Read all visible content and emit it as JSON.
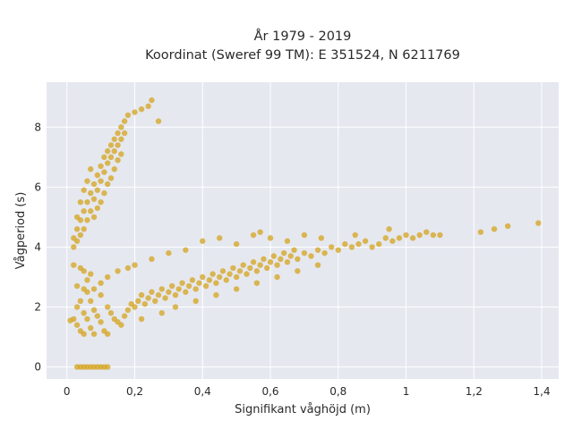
{
  "chart_data": {
    "type": "scatter",
    "title_lines": [
      "År 1979 - 2019",
      "Koordinat (Sweref 99 TM): E 351524, N 6211769"
    ],
    "xlabel": "Signifikant våghöjd (m)",
    "ylabel": "Vågperiod (s)",
    "xlim": [
      -0.06,
      1.45
    ],
    "ylim": [
      -0.4,
      9.5
    ],
    "x_ticks": [
      {
        "value": 0,
        "label": "0"
      },
      {
        "value": 0.2,
        "label": "0,2"
      },
      {
        "value": 0.4,
        "label": "0,4"
      },
      {
        "value": 0.6,
        "label": "0,6"
      },
      {
        "value": 0.8,
        "label": "0,8"
      },
      {
        "value": 1.0,
        "label": "1"
      },
      {
        "value": 1.2,
        "label": "1,2"
      },
      {
        "value": 1.4,
        "label": "1,4"
      }
    ],
    "y_ticks": [
      {
        "value": 0,
        "label": "0"
      },
      {
        "value": 2,
        "label": "2"
      },
      {
        "value": 4,
        "label": "4"
      },
      {
        "value": 6,
        "label": "6"
      },
      {
        "value": 8,
        "label": "8"
      }
    ],
    "grid": true,
    "colors": {
      "points": "#d4a41e",
      "plot_bg": "#e6e8f0",
      "grid": "#ffffff"
    },
    "series": [
      {
        "marker_opacity": 0.75,
        "points": [
          [
            0.01,
            1.55
          ],
          [
            0.02,
            1.6
          ],
          [
            0.03,
            1.4
          ],
          [
            0.04,
            1.2
          ],
          [
            0.05,
            1.1
          ],
          [
            0.03,
            2.0
          ],
          [
            0.04,
            2.2
          ],
          [
            0.05,
            1.8
          ],
          [
            0.06,
            1.6
          ],
          [
            0.07,
            1.3
          ],
          [
            0.08,
            1.1
          ],
          [
            0.06,
            2.5
          ],
          [
            0.07,
            2.2
          ],
          [
            0.08,
            1.9
          ],
          [
            0.09,
            1.7
          ],
          [
            0.1,
            1.5
          ],
          [
            0.11,
            1.2
          ],
          [
            0.12,
            1.1
          ],
          [
            0.05,
            2.6
          ],
          [
            0.06,
            2.9
          ],
          [
            0.07,
            3.1
          ],
          [
            0.04,
            3.3
          ],
          [
            0.05,
            3.2
          ],
          [
            0.03,
            2.7
          ],
          [
            0.02,
            3.4
          ],
          [
            0.1,
            2.4
          ],
          [
            0.12,
            2.0
          ],
          [
            0.13,
            1.8
          ],
          [
            0.14,
            1.6
          ],
          [
            0.15,
            1.5
          ],
          [
            0.16,
            1.4
          ],
          [
            0.17,
            1.7
          ],
          [
            0.18,
            1.9
          ],
          [
            0.19,
            2.1
          ],
          [
            0.2,
            2.0
          ],
          [
            0.21,
            2.2
          ],
          [
            0.22,
            2.4
          ],
          [
            0.23,
            2.1
          ],
          [
            0.24,
            2.3
          ],
          [
            0.25,
            2.5
          ],
          [
            0.26,
            2.2
          ],
          [
            0.27,
            2.4
          ],
          [
            0.28,
            2.6
          ],
          [
            0.29,
            2.3
          ],
          [
            0.3,
            2.5
          ],
          [
            0.31,
            2.7
          ],
          [
            0.32,
            2.4
          ],
          [
            0.33,
            2.6
          ],
          [
            0.34,
            2.8
          ],
          [
            0.35,
            2.5
          ],
          [
            0.36,
            2.7
          ],
          [
            0.37,
            2.9
          ],
          [
            0.38,
            2.6
          ],
          [
            0.39,
            2.8
          ],
          [
            0.4,
            3.0
          ],
          [
            0.41,
            2.7
          ],
          [
            0.42,
            2.9
          ],
          [
            0.43,
            3.1
          ],
          [
            0.44,
            2.8
          ],
          [
            0.45,
            3.0
          ],
          [
            0.46,
            3.2
          ],
          [
            0.47,
            2.9
          ],
          [
            0.48,
            3.1
          ],
          [
            0.49,
            3.3
          ],
          [
            0.5,
            3.0
          ],
          [
            0.51,
            3.2
          ],
          [
            0.52,
            3.4
          ],
          [
            0.53,
            3.1
          ],
          [
            0.54,
            3.3
          ],
          [
            0.55,
            3.5
          ],
          [
            0.56,
            3.2
          ],
          [
            0.57,
            3.4
          ],
          [
            0.58,
            3.6
          ],
          [
            0.59,
            3.3
          ],
          [
            0.6,
            3.5
          ],
          [
            0.61,
            3.7
          ],
          [
            0.62,
            3.4
          ],
          [
            0.63,
            3.6
          ],
          [
            0.64,
            3.8
          ],
          [
            0.65,
            3.5
          ],
          [
            0.66,
            3.7
          ],
          [
            0.67,
            3.9
          ],
          [
            0.68,
            3.6
          ],
          [
            0.7,
            3.8
          ],
          [
            0.72,
            3.7
          ],
          [
            0.74,
            3.9
          ],
          [
            0.76,
            3.8
          ],
          [
            0.78,
            4.0
          ],
          [
            0.8,
            3.9
          ],
          [
            0.82,
            4.1
          ],
          [
            0.84,
            4.0
          ],
          [
            0.86,
            4.1
          ],
          [
            0.88,
            4.2
          ],
          [
            0.9,
            4.0
          ],
          [
            0.92,
            4.1
          ],
          [
            0.94,
            4.3
          ],
          [
            0.96,
            4.2
          ],
          [
            0.98,
            4.3
          ],
          [
            1.0,
            4.4
          ],
          [
            1.02,
            4.3
          ],
          [
            1.04,
            4.4
          ],
          [
            1.06,
            4.5
          ],
          [
            1.08,
            4.4
          ],
          [
            1.1,
            4.4
          ],
          [
            1.22,
            4.5
          ],
          [
            1.26,
            4.6
          ],
          [
            1.3,
            4.7
          ],
          [
            1.39,
            4.8
          ],
          [
            0.95,
            4.6
          ],
          [
            0.57,
            4.5
          ],
          [
            0.45,
            4.3
          ],
          [
            0.35,
            3.9
          ],
          [
            0.25,
            3.6
          ],
          [
            0.2,
            3.4
          ],
          [
            0.15,
            3.2
          ],
          [
            0.12,
            3.0
          ],
          [
            0.1,
            2.8
          ],
          [
            0.08,
            2.6
          ],
          [
            0.18,
            3.3
          ],
          [
            0.3,
            3.8
          ],
          [
            0.4,
            4.2
          ],
          [
            0.5,
            4.1
          ],
          [
            0.6,
            4.3
          ],
          [
            0.7,
            4.4
          ],
          [
            0.55,
            4.4
          ],
          [
            0.65,
            4.2
          ],
          [
            0.75,
            4.3
          ],
          [
            0.85,
            4.4
          ],
          [
            0.22,
            1.6
          ],
          [
            0.28,
            1.8
          ],
          [
            0.32,
            2.0
          ],
          [
            0.38,
            2.2
          ],
          [
            0.44,
            2.4
          ],
          [
            0.5,
            2.6
          ],
          [
            0.56,
            2.8
          ],
          [
            0.62,
            3.0
          ],
          [
            0.68,
            3.2
          ],
          [
            0.74,
            3.4
          ],
          [
            0.03,
            0.0
          ],
          [
            0.04,
            0.0
          ],
          [
            0.05,
            0.0
          ],
          [
            0.06,
            0.0
          ],
          [
            0.07,
            0.0
          ],
          [
            0.08,
            0.0
          ],
          [
            0.09,
            0.0
          ],
          [
            0.1,
            0.0
          ],
          [
            0.11,
            0.0
          ],
          [
            0.12,
            0.0
          ],
          [
            0.02,
            4.3
          ],
          [
            0.03,
            4.6
          ],
          [
            0.04,
            4.9
          ],
          [
            0.05,
            5.2
          ],
          [
            0.06,
            5.5
          ],
          [
            0.07,
            5.8
          ],
          [
            0.08,
            6.1
          ],
          [
            0.09,
            6.4
          ],
          [
            0.1,
            6.7
          ],
          [
            0.11,
            7.0
          ],
          [
            0.12,
            7.2
          ],
          [
            0.13,
            7.4
          ],
          [
            0.14,
            7.6
          ],
          [
            0.15,
            7.8
          ],
          [
            0.16,
            8.0
          ],
          [
            0.17,
            8.2
          ],
          [
            0.18,
            8.4
          ],
          [
            0.2,
            8.5
          ],
          [
            0.22,
            8.6
          ],
          [
            0.24,
            8.7
          ],
          [
            0.25,
            8.9
          ],
          [
            0.27,
            8.2
          ],
          [
            0.03,
            5.0
          ],
          [
            0.04,
            5.5
          ],
          [
            0.05,
            5.9
          ],
          [
            0.06,
            6.2
          ],
          [
            0.07,
            6.6
          ],
          [
            0.08,
            5.6
          ],
          [
            0.09,
            5.9
          ],
          [
            0.1,
            6.2
          ],
          [
            0.11,
            6.5
          ],
          [
            0.12,
            6.8
          ],
          [
            0.13,
            7.0
          ],
          [
            0.14,
            7.2
          ],
          [
            0.15,
            7.4
          ],
          [
            0.16,
            7.6
          ],
          [
            0.17,
            7.8
          ],
          [
            0.05,
            4.6
          ],
          [
            0.06,
            4.9
          ],
          [
            0.07,
            5.2
          ],
          [
            0.08,
            5.0
          ],
          [
            0.09,
            5.3
          ],
          [
            0.1,
            5.5
          ],
          [
            0.11,
            5.8
          ],
          [
            0.12,
            6.1
          ],
          [
            0.13,
            6.3
          ],
          [
            0.14,
            6.6
          ],
          [
            0.15,
            6.9
          ],
          [
            0.16,
            7.1
          ],
          [
            0.03,
            4.2
          ],
          [
            0.04,
            4.4
          ],
          [
            0.02,
            4.0
          ]
        ]
      }
    ]
  }
}
